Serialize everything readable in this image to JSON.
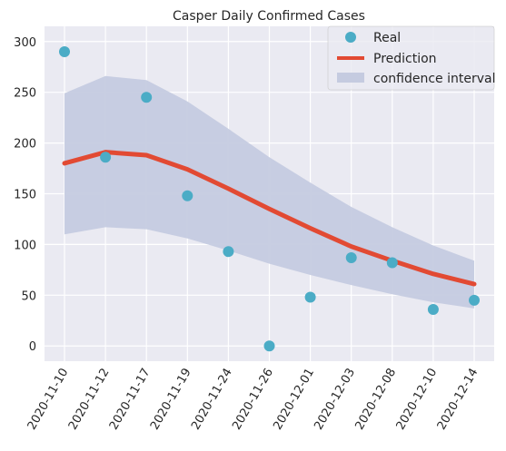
{
  "chart_data": {
    "type": "line",
    "title": "Casper Daily Confirmed Cases",
    "categories": [
      "2020-11-10",
      "2020-11-12",
      "2020-11-17",
      "2020-11-19",
      "2020-11-24",
      "2020-11-26",
      "2020-12-01",
      "2020-12-03",
      "2020-12-08",
      "2020-12-10",
      "2020-12-14"
    ],
    "ylim": [
      -15,
      315
    ],
    "yticks": [
      0,
      50,
      100,
      150,
      200,
      250,
      300
    ],
    "grid": true,
    "legend_position": "top-right",
    "series": [
      {
        "name": "Real",
        "kind": "scatter",
        "color": "#4bacc6",
        "values": [
          290,
          186,
          245,
          148,
          93,
          0,
          48,
          87,
          82,
          36,
          45
        ]
      },
      {
        "name": "Prediction",
        "kind": "line",
        "color": "#e24a33",
        "values": [
          180,
          191,
          188,
          174,
          155,
          135,
          116,
          98,
          84,
          71,
          61
        ]
      },
      {
        "name": "confidence interval",
        "kind": "band",
        "color": "#c5cbe0",
        "lower": [
          110,
          117,
          115,
          106,
          94,
          81,
          70,
          60,
          51,
          43,
          37
        ],
        "upper": [
          249,
          266,
          262,
          241,
          214,
          186,
          161,
          137,
          117,
          99,
          84
        ]
      }
    ]
  }
}
